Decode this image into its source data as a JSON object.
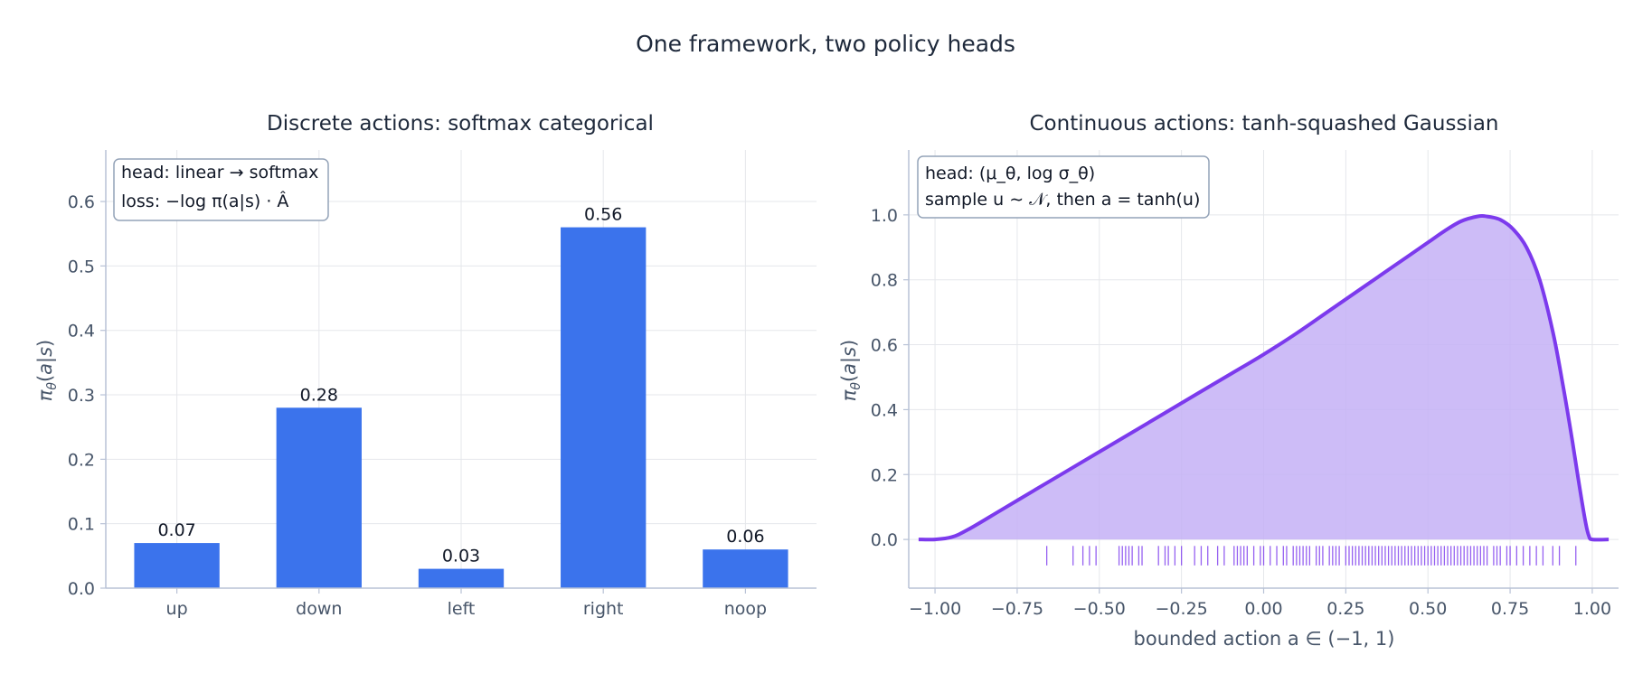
{
  "figure": {
    "title": "One framework, two policy heads"
  },
  "chart_data": [
    {
      "type": "bar",
      "title": "Discrete actions: softmax categorical",
      "xlabel": "",
      "ylabel": "π_θ(a|s)",
      "categories": [
        "up",
        "down",
        "left",
        "right",
        "noop"
      ],
      "values": [
        0.07,
        0.28,
        0.03,
        0.56,
        0.06
      ],
      "value_labels": [
        "0.07",
        "0.28",
        "0.03",
        "0.56",
        "0.06"
      ],
      "ylim": [
        0,
        0.68
      ],
      "yticks": [
        0.0,
        0.1,
        0.2,
        0.3,
        0.4,
        0.5,
        0.6
      ],
      "ytick_labels": [
        "0.0",
        "0.1",
        "0.2",
        "0.3",
        "0.4",
        "0.5",
        "0.6"
      ],
      "grid": true,
      "bar_color": "#3b73ec",
      "annotation": {
        "line1": "head: linear → softmax",
        "line2": "loss: −log π(a|s) · Â",
        "placement": "top-left"
      }
    },
    {
      "type": "area",
      "title": "Continuous actions: tanh-squashed Gaussian",
      "xlabel": "bounded action a ∈ (−1, 1)",
      "ylabel": "π_θ(a|s)",
      "xlim": [
        -1.08,
        1.08
      ],
      "ylim": [
        -0.15,
        1.2
      ],
      "xticks": [
        -1.0,
        -0.75,
        -0.5,
        -0.25,
        0.0,
        0.25,
        0.5,
        0.75,
        1.0
      ],
      "xtick_labels": [
        "−1.00",
        "−0.75",
        "−0.50",
        "−0.25",
        "0.00",
        "0.25",
        "0.50",
        "0.75",
        "1.00"
      ],
      "yticks": [
        0.0,
        0.2,
        0.4,
        0.6,
        0.8,
        1.0
      ],
      "ytick_labels": [
        "0.0",
        "0.2",
        "0.4",
        "0.6",
        "0.8",
        "1.0"
      ],
      "grid": true,
      "line_color": "#7c3aed",
      "fill_color": "#c4b0f6",
      "density_curve": {
        "x": [
          -1.05,
          -1.0,
          -0.95,
          -0.9,
          -0.8,
          -0.7,
          -0.6,
          -0.5,
          -0.4,
          -0.3,
          -0.2,
          -0.1,
          0.0,
          0.1,
          0.2,
          0.3,
          0.4,
          0.5,
          0.55,
          0.6,
          0.65,
          0.68,
          0.72,
          0.76,
          0.8,
          0.84,
          0.88,
          0.91,
          0.94,
          0.96,
          0.98,
          0.99,
          1.0,
          1.05
        ],
        "y": [
          0.0,
          0.0,
          0.007,
          0.03,
          0.09,
          0.15,
          0.21,
          0.27,
          0.33,
          0.39,
          0.45,
          0.51,
          0.57,
          0.635,
          0.705,
          0.775,
          0.845,
          0.915,
          0.95,
          0.98,
          0.995,
          0.995,
          0.985,
          0.955,
          0.9,
          0.8,
          0.64,
          0.48,
          0.3,
          0.17,
          0.05,
          0.01,
          0.0,
          0.0
        ]
      },
      "samples": [
        -0.66,
        -0.58,
        -0.55,
        -0.53,
        -0.51,
        -0.44,
        -0.43,
        -0.42,
        -0.41,
        -0.4,
        -0.38,
        -0.37,
        -0.32,
        -0.3,
        -0.29,
        -0.27,
        -0.25,
        -0.21,
        -0.19,
        -0.17,
        -0.14,
        -0.12,
        -0.09,
        -0.08,
        -0.07,
        -0.06,
        -0.05,
        -0.03,
        -0.01,
        0.0,
        0.02,
        0.04,
        0.06,
        0.07,
        0.09,
        0.1,
        0.11,
        0.12,
        0.13,
        0.14,
        0.16,
        0.17,
        0.18,
        0.2,
        0.21,
        0.22,
        0.23,
        0.25,
        0.26,
        0.27,
        0.28,
        0.29,
        0.3,
        0.31,
        0.32,
        0.33,
        0.34,
        0.35,
        0.36,
        0.37,
        0.38,
        0.39,
        0.4,
        0.41,
        0.42,
        0.43,
        0.44,
        0.45,
        0.46,
        0.47,
        0.48,
        0.49,
        0.5,
        0.51,
        0.52,
        0.53,
        0.54,
        0.55,
        0.56,
        0.57,
        0.58,
        0.59,
        0.6,
        0.61,
        0.62,
        0.63,
        0.64,
        0.65,
        0.66,
        0.67,
        0.68,
        0.7,
        0.71,
        0.72,
        0.74,
        0.75,
        0.77,
        0.79,
        0.81,
        0.83,
        0.85,
        0.88,
        0.9,
        0.95
      ],
      "annotation": {
        "line1": "head: (μ_θ, log σ_θ)",
        "line2": "sample u ∼ 𝒩, then a = tanh(u)",
        "placement": "top-left"
      }
    }
  ]
}
